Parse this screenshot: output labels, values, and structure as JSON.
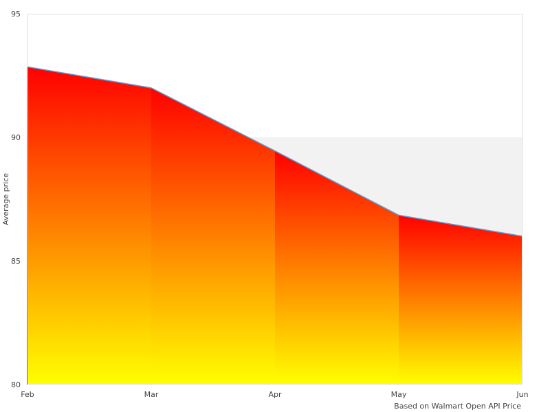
{
  "chart_data": {
    "type": "area",
    "categories": [
      "Feb",
      "Mar",
      "Apr",
      "May",
      "Jun"
    ],
    "values": [
      92.85,
      92.0,
      89.45,
      86.85,
      86.0
    ],
    "ylabel": "Average price",
    "ylim": [
      80,
      95
    ],
    "yticks": [
      95,
      90,
      85,
      80
    ],
    "credit": "Based on Walmart Open API Price",
    "band": [
      86,
      90
    ],
    "grid": false,
    "colors": {
      "fill_top": "#ff0000",
      "fill_bottom": "#ffff00",
      "line": "#5b9bd5",
      "band": "#f2f2f2",
      "frame": "#dddddd"
    }
  }
}
